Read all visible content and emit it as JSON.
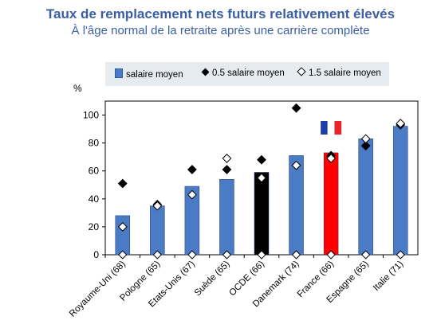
{
  "chart_data": {
    "type": "bar",
    "title": "Taux de remplacement nets futurs relativement élevés",
    "subtitle": "À l'âge normal de la retraite après une carrière complète",
    "ylabel": "%",
    "ylim": [
      0,
      110
    ],
    "yticks": [
      0,
      20,
      40,
      60,
      80,
      100
    ],
    "categories": [
      "Royaume-Uni (68)",
      "Pologne (65)",
      "Etats-Unis (67)",
      "Suède (65)",
      "OCDE (66)",
      "Danemark (74)",
      "France (66)",
      "Espagne (65)",
      "Italie (71)"
    ],
    "series": [
      {
        "name": "salaire moyen",
        "marker": "bar",
        "values": [
          28,
          35,
          49,
          54,
          59,
          71,
          73,
          83,
          92
        ]
      },
      {
        "name": "0.5 salaire moyen",
        "marker": "black-diamond",
        "values": [
          51,
          36,
          61,
          61,
          68,
          105,
          71,
          78,
          93
        ]
      },
      {
        "name": "1.5 salaire moyen",
        "marker": "white-diamond",
        "values": [
          20,
          35,
          43,
          69,
          55,
          64,
          69,
          83,
          94
        ]
      }
    ],
    "bar_colors": [
      "#4a7bc4",
      "#4a7bc4",
      "#4a7bc4",
      "#4a7bc4",
      "#000000",
      "#4a7bc4",
      "#ff0000",
      "#4a7bc4",
      "#4a7bc4"
    ],
    "highlight_flag": "France",
    "grid": false,
    "legend_position": "top"
  }
}
